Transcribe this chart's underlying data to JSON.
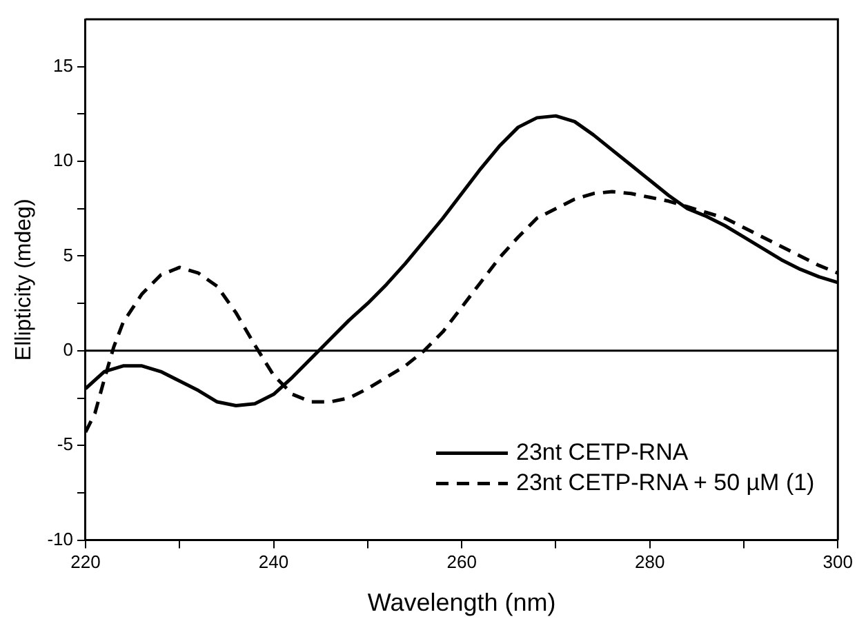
{
  "chart_data": {
    "type": "line",
    "xlabel": "Wavelength (nm)",
    "ylabel": "Ellipticity (mdeg)",
    "xlim": [
      220,
      300
    ],
    "xticks": [
      220,
      {
        "value": 230,
        "label": null
      },
      240,
      {
        "value": 250,
        "label": null
      },
      260,
      {
        "value": 270,
        "label": null
      },
      280,
      {
        "value": 290,
        "label": null
      },
      300
    ],
    "ylim": [
      -10,
      17.5
    ],
    "yticks": [
      -10,
      {
        "value": -7.5,
        "label": null
      },
      -5,
      {
        "value": -2.5,
        "label": null
      },
      0,
      {
        "value": 2.5,
        "label": null
      },
      5,
      {
        "value": 7.5,
        "label": null
      },
      10,
      {
        "value": 12.5,
        "label": null
      },
      15
    ],
    "grid": false,
    "legend": "bottom right",
    "marker": "none",
    "ref_lines": [
      {
        "axis": "y",
        "value": 0,
        "color": "#000000"
      }
    ],
    "series": [
      {
        "name": "23nt CETP-RNA",
        "color": "#000000",
        "line_style": "solid",
        "x": [
          220,
          222,
          224,
          226,
          228,
          230,
          232,
          234,
          236,
          238,
          240,
          242,
          244,
          246,
          248,
          250,
          252,
          254,
          256,
          258,
          260,
          262,
          264,
          266,
          268,
          270,
          272,
          274,
          276,
          278,
          280,
          282,
          284,
          286,
          288,
          290,
          292,
          294,
          296,
          298,
          300
        ],
        "values": [
          -2,
          -1.1,
          -0.8,
          -0.8,
          -1.1,
          -1.6,
          -2.1,
          -2.7,
          -2.9,
          -2.8,
          -2.3,
          -1.4,
          -0.4,
          0.6,
          1.6,
          2.5,
          3.5,
          4.6,
          5.8,
          7.0,
          8.3,
          9.6,
          10.8,
          11.8,
          12.3,
          12.4,
          12.1,
          11.4,
          10.6,
          9.8,
          9.0,
          8.2,
          7.5,
          7.1,
          6.6,
          6.0,
          5.4,
          4.8,
          4.3,
          3.9,
          3.6
        ]
      },
      {
        "name": "23nt CETP-RNA + 50 µM (1)",
        "color": "#000000",
        "line_style": "dashed",
        "x": [
          220,
          221,
          222,
          223,
          224,
          226,
          228,
          230,
          232,
          234,
          236,
          238,
          240,
          242,
          244,
          246,
          248,
          250,
          252,
          254,
          256,
          258,
          260,
          262,
          264,
          266,
          268,
          270,
          272,
          274,
          276,
          278,
          280,
          282,
          284,
          286,
          288,
          290,
          292,
          294,
          296,
          298,
          300
        ],
        "values": [
          -4.3,
          -3.3,
          -1.5,
          0.2,
          1.5,
          3.0,
          4.0,
          4.4,
          4.1,
          3.4,
          2.0,
          0.3,
          -1.3,
          -2.3,
          -2.7,
          -2.7,
          -2.5,
          -2.0,
          -1.4,
          -0.8,
          0.0,
          1.0,
          2.3,
          3.6,
          4.9,
          6.0,
          7.0,
          7.5,
          8.0,
          8.3,
          8.4,
          8.3,
          8.1,
          7.9,
          7.6,
          7.3,
          7.0,
          6.5,
          6.0,
          5.5,
          5.0,
          4.5,
          4.1
        ]
      }
    ]
  }
}
